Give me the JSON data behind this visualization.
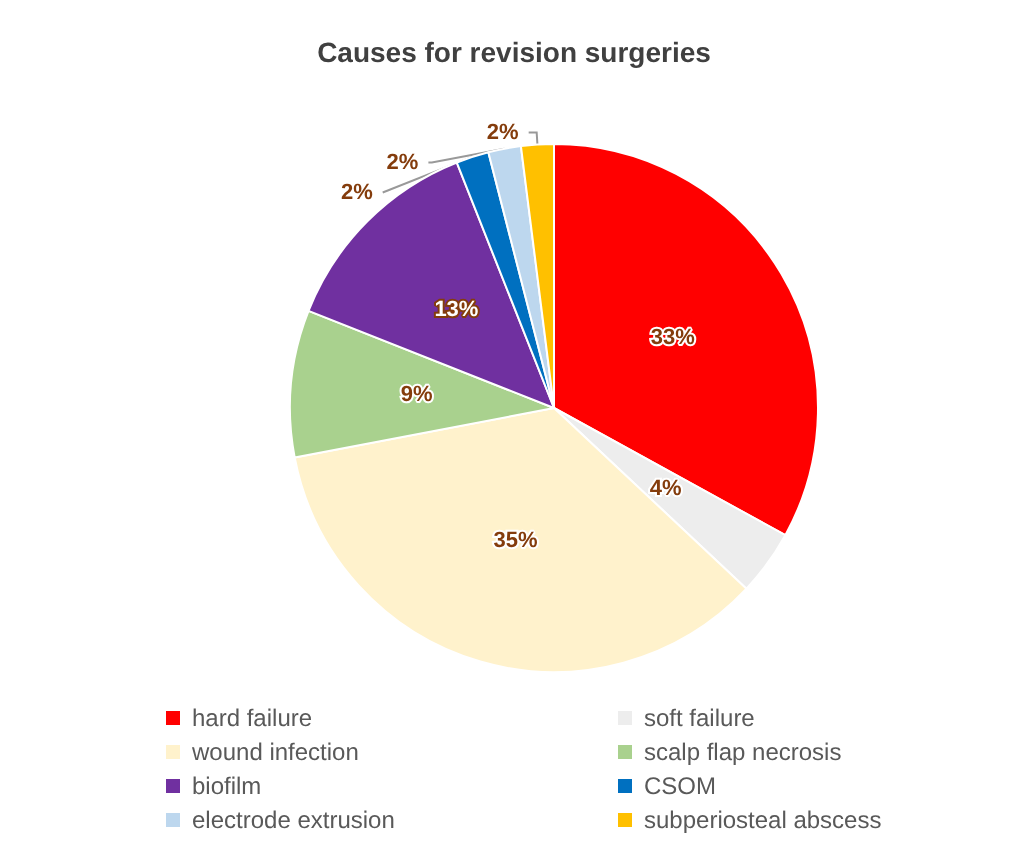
{
  "chart_data": {
    "type": "pie",
    "title": "Causes for revision surgeries",
    "categories": [
      "hard failure",
      "soft failure",
      "wound infection",
      "scalp flap necrosis",
      "biofilm",
      "CSOM",
      "electrode extrusion",
      "subperiosteal abscess"
    ],
    "values": [
      33,
      4,
      35,
      9,
      13,
      2,
      2,
      2
    ],
    "colors": [
      "#ff0000",
      "#ededed",
      "#fff2cc",
      "#a9d18e",
      "#7030a0",
      "#0070c0",
      "#bdd7ee",
      "#ffc000"
    ],
    "value_labels": [
      "33%",
      "4%",
      "35%",
      "9%",
      "13%",
      "2%",
      "2%",
      "2%"
    ],
    "legend": "bottom"
  }
}
